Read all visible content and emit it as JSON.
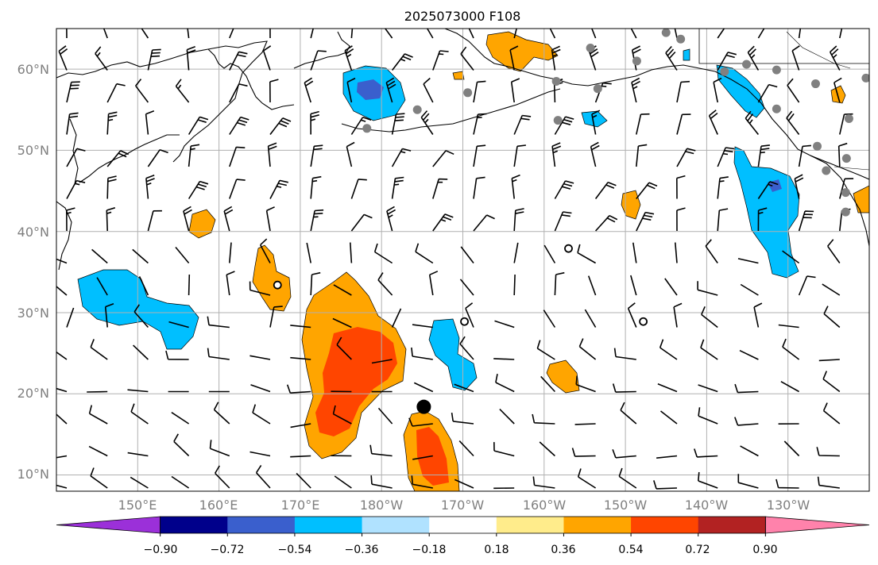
{
  "title": "2025073000 F108",
  "map": {
    "projection": "equirectangular",
    "lon_range_deg_east": [
      140,
      240
    ],
    "lat_range_deg": [
      8,
      65
    ],
    "lat_labels": [
      "10°N",
      "20°N",
      "30°N",
      "40°N",
      "50°N",
      "60°N"
    ],
    "lon_labels": [
      "150°E",
      "160°E",
      "170°E",
      "180°W",
      "170°W",
      "160°W",
      "150°W",
      "140°W",
      "130°W"
    ],
    "gridlines": true,
    "wind_barbs": true
  },
  "colorbar": {
    "orientation": "horizontal",
    "extend": "both",
    "tick_labels": [
      "−0.90",
      "−0.72",
      "−0.54",
      "−0.36",
      "−0.18",
      "0.18",
      "0.36",
      "0.54",
      "0.72",
      "0.90"
    ],
    "colors": [
      "#9b30d9",
      "#00008b",
      "#3a5fcd",
      "#00bfff",
      "#b0e2ff",
      "#ffffff",
      "#ffec8b",
      "#ffa500",
      "#ff4500",
      "#b22222",
      "#ff82ab"
    ]
  },
  "markers": {
    "filled_black": [
      {
        "lon": 185.2,
        "lat": 18.4
      }
    ],
    "open_circles": [
      {
        "lon": 167.2,
        "lat": 33.4
      },
      {
        "lon": 190.2,
        "lat": 28.9
      },
      {
        "lon": 203,
        "lat": 37.9
      },
      {
        "lon": 212.2,
        "lat": 28.9
      }
    ],
    "gray_dots": [
      {
        "lon": 215,
        "lat": 64.5
      },
      {
        "lon": 216.8,
        "lat": 63.7
      },
      {
        "lon": 205.7,
        "lat": 62.6
      },
      {
        "lon": 211.4,
        "lat": 61.0
      },
      {
        "lon": 222.2,
        "lat": 59.7
      },
      {
        "lon": 224.9,
        "lat": 60.6
      },
      {
        "lon": 228.6,
        "lat": 59.9
      },
      {
        "lon": 233.4,
        "lat": 58.2
      },
      {
        "lon": 239.6,
        "lat": 58.9
      },
      {
        "lon": 201.5,
        "lat": 58.5
      },
      {
        "lon": 206.6,
        "lat": 57.6
      },
      {
        "lon": 190.6,
        "lat": 57.1
      },
      {
        "lon": 201.7,
        "lat": 53.7
      },
      {
        "lon": 178.2,
        "lat": 52.7
      },
      {
        "lon": 184.4,
        "lat": 55.0
      },
      {
        "lon": 228.6,
        "lat": 55.1
      },
      {
        "lon": 237.5,
        "lat": 53.9
      },
      {
        "lon": 233.6,
        "lat": 50.5
      },
      {
        "lon": 237.2,
        "lat": 49.0
      },
      {
        "lon": 234.7,
        "lat": 47.5
      },
      {
        "lon": 237.1,
        "lat": 44.8
      },
      {
        "lon": 237.1,
        "lat": 42.4
      }
    ]
  }
}
